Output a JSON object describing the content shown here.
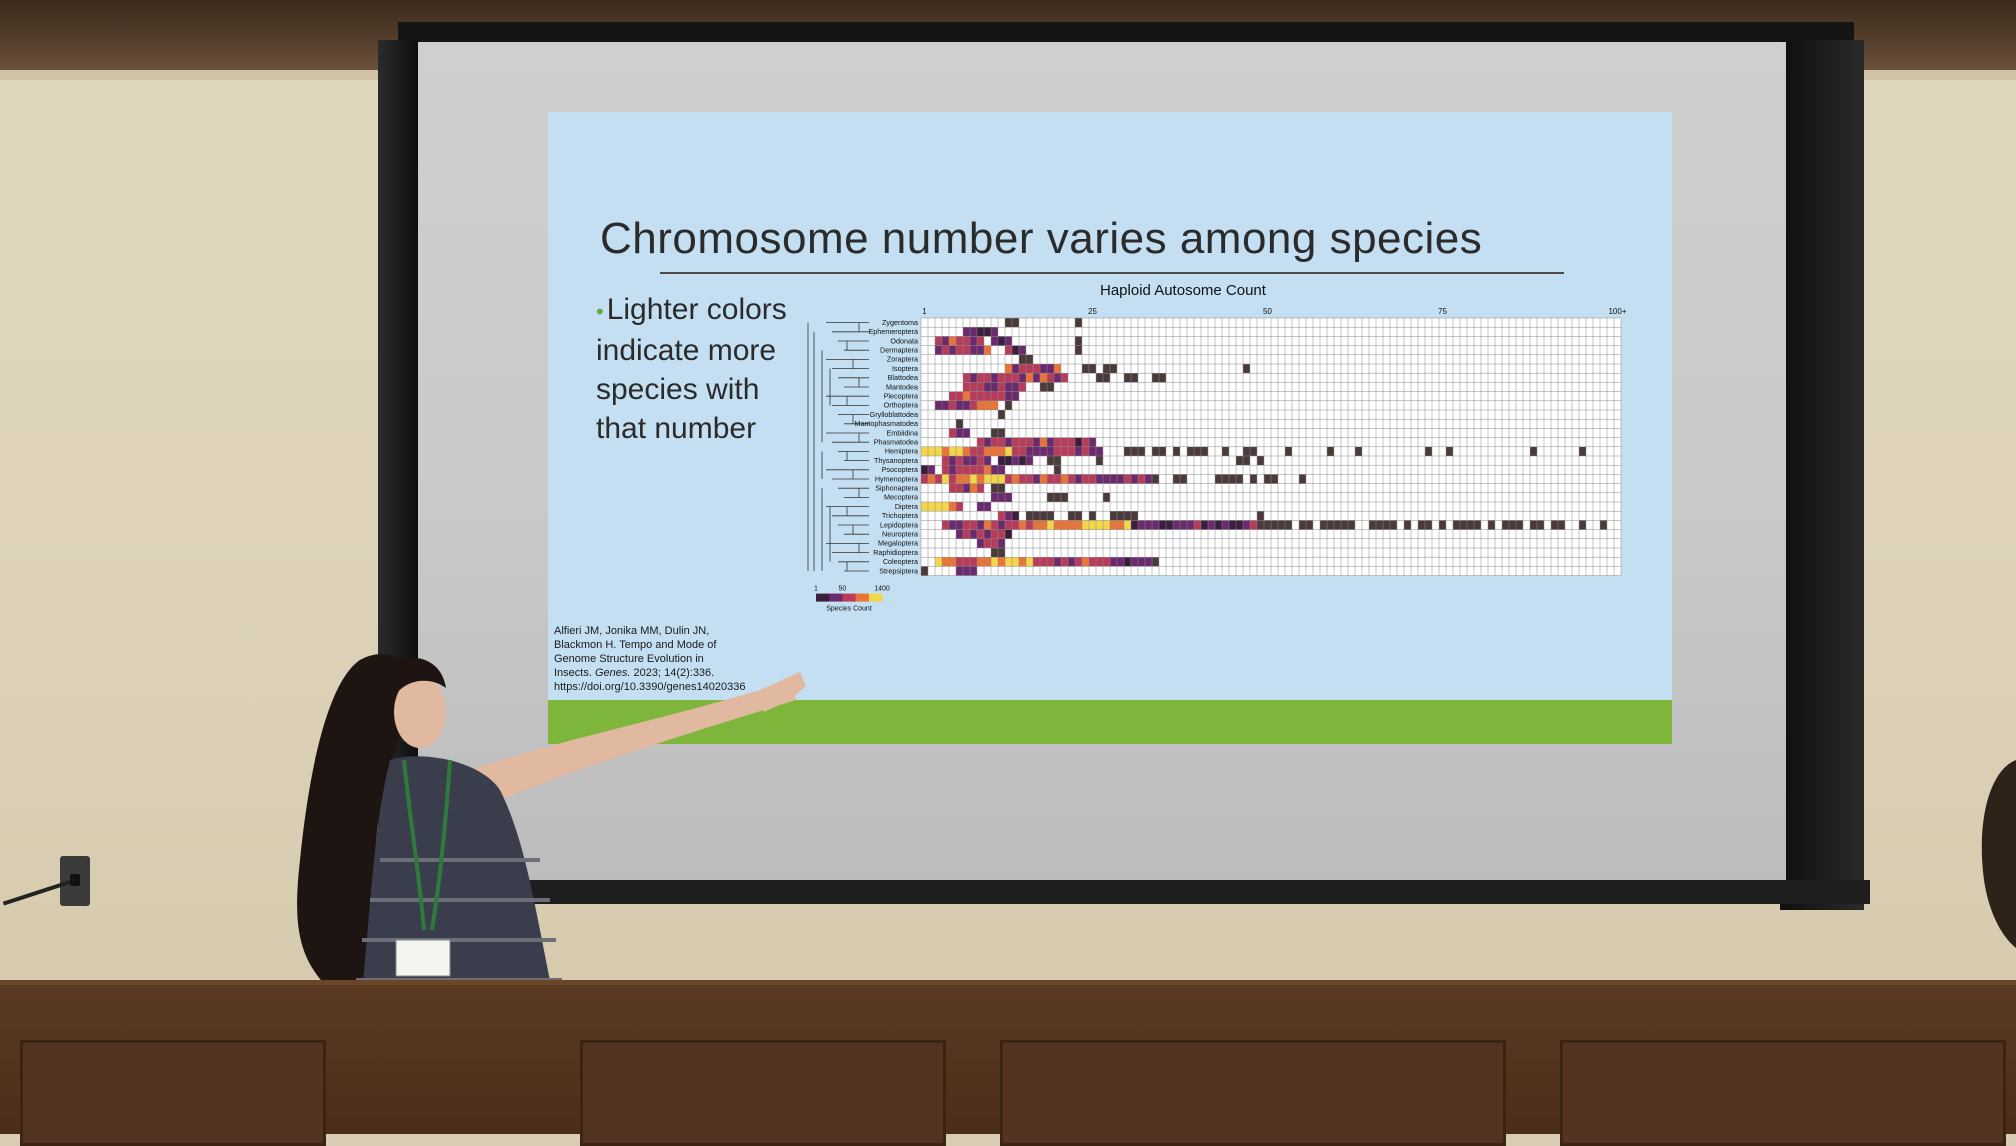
{
  "slide": {
    "title": "Chromosome number varies among species",
    "bullet": "Lighter colors indicate more species with that number",
    "citation": {
      "line1": "Alfieri JM, Jonika MM, Dulin JN,",
      "line2": "Blackmon H. Tempo and Mode of",
      "line3": "Genome Structure Evolution in",
      "line4_prefix": "Insects.",
      "journal": "Genes.",
      "line4_suffix": "2023; 14(2):336.",
      "doi": "https://doi.org/10.3390/genes14020336"
    }
  },
  "chart_data": {
    "type": "heatmap",
    "title": "Haploid Autosome Count",
    "x_ticks": [
      "1",
      "25",
      "50",
      "75",
      "100+"
    ],
    "rows": [
      "Zygentoma",
      "Ephemeroptera",
      "Odonata",
      "Dermaptera",
      "Zoraptera",
      "Isoptera",
      "Blattodea",
      "Mantodea",
      "Plecoptera",
      "Orthoptera",
      "Grylloblattodea",
      "Mantophasmatodea",
      "Embiidina",
      "Phasmatodea",
      "Hemiptera",
      "Thysanoptera",
      "Psocoptera",
      "Hymenoptera",
      "Siphonaptera",
      "Mecoptera",
      "Diptera",
      "Trichoptera",
      "Lepidoptera",
      "Neuroptera",
      "Megaloptera",
      "Raphidioptera",
      "Coleoptera",
      "Strepsiptera"
    ],
    "legend": {
      "title": "Species Count",
      "ticks": [
        "1",
        "50",
        "1400"
      ],
      "colors": [
        "#3a1e3d",
        "#6b2a6e",
        "#b63c5a",
        "#e8743a",
        "#f3d64a"
      ]
    },
    "colors": {
      "empty": "#ffffff",
      "grid": "#8a8a8a",
      "single": "#4a3a3a"
    }
  },
  "colors": {
    "slide_bg": "#c4dff2",
    "accent_green": "#7db63a",
    "wall": "#ddd2b9",
    "wood": "#4a2e1a"
  }
}
